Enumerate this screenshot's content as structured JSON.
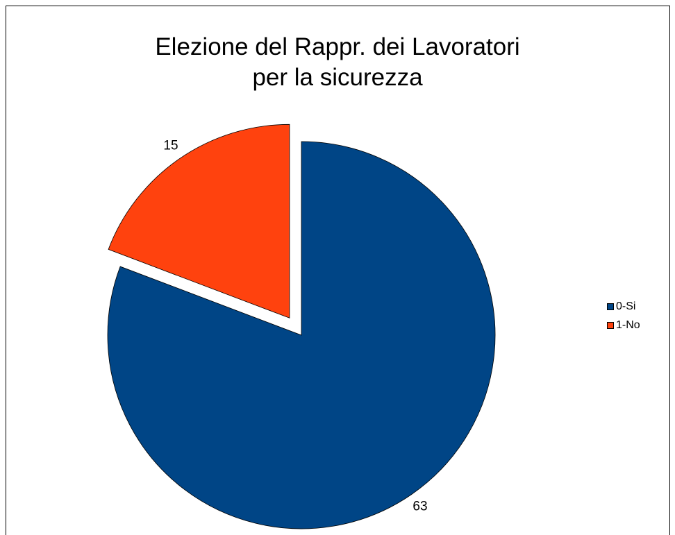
{
  "chart_data": {
    "type": "pie",
    "title_lines": [
      "Elezione del Rappr. dei Lavoratori",
      "per la sicurezza"
    ],
    "slices": [
      {
        "label": "0-Si",
        "value": 63,
        "color": "#004586"
      },
      {
        "label": "1-No",
        "value": 15,
        "color": "#ff420e"
      }
    ],
    "exploded_slice": "1-No",
    "legend_position": "right"
  }
}
